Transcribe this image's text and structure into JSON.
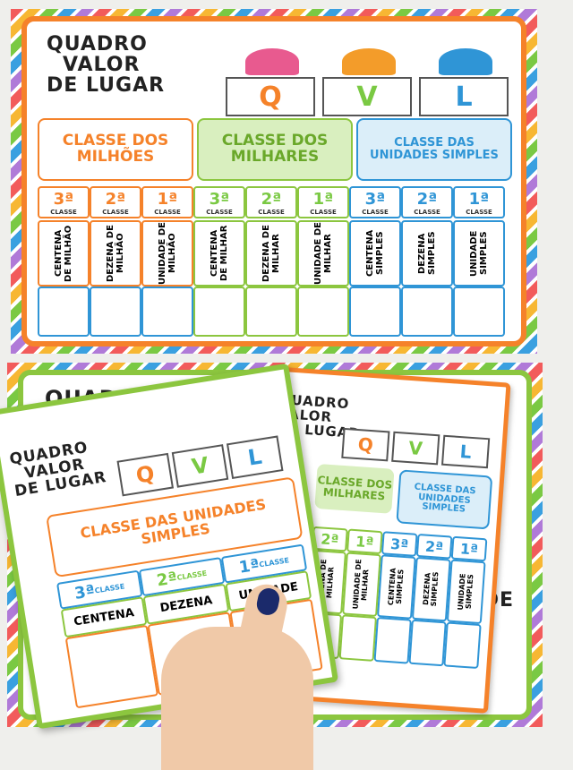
{
  "top_poster": {
    "title": [
      "QUADRO",
      "VALOR",
      "DE LUGAR"
    ],
    "letters": [
      "Q",
      "V",
      "L"
    ],
    "classes": [
      "CLASSE DOS MILHÕES",
      "CLASSE DOS MILHARES",
      "CLASSE DAS UNIDADES SIMPLES"
    ],
    "ordinals": [
      "3ª",
      "2ª",
      "1ª"
    ],
    "ordinal_label": "CLASSE",
    "columns": [
      "CENTENA DE MILHÃO",
      "DEZENA DE MILHÃO",
      "UNIDADE DE MILHÃO",
      "CENTENA DE MILHAR",
      "DEZENA DE MILHAR",
      "UNIDADE DE MILHAR",
      "CENTENA SIMPLES",
      "DEZENA SIMPLES",
      "UNIDADE SIMPLES"
    ]
  },
  "bottom_poster": {
    "title_partial": "QUADRO",
    "right_text_partial": "DE"
  },
  "middle_card": {
    "title": [
      "QUADRO",
      "VALOR",
      "DE LUGAR"
    ],
    "letters": [
      "Q",
      "V",
      "L"
    ],
    "classes": [
      "CLASSE DOS MILHARES",
      "CLASSE DAS UNIDADES SIMPLES"
    ],
    "ordinals": [
      "3ª",
      "2ª",
      "1ª"
    ],
    "columns": [
      "DEZENA DE MILHAR",
      "UNIDADE DE MILHAR",
      "CENTENA SIMPLES",
      "DEZENA SIMPLES",
      "UNIDADE SIMPLES"
    ]
  },
  "front_card": {
    "title": [
      "QUADRO",
      "VALOR",
      "DE LUGAR"
    ],
    "letters": [
      "Q",
      "V",
      "L"
    ],
    "class_title": "CLASSE DAS UNIDADES SIMPLES",
    "ordinals": [
      "3ª",
      "2ª",
      "1ª"
    ],
    "ordinal_label": "CLASSE",
    "columns": [
      "CENTENA",
      "DEZENA",
      "UNIDADE"
    ]
  },
  "colors": {
    "orange": "#f5822a",
    "green": "#8cc63f",
    "blue": "#2f95d6",
    "nail": "#1b2a6b"
  }
}
